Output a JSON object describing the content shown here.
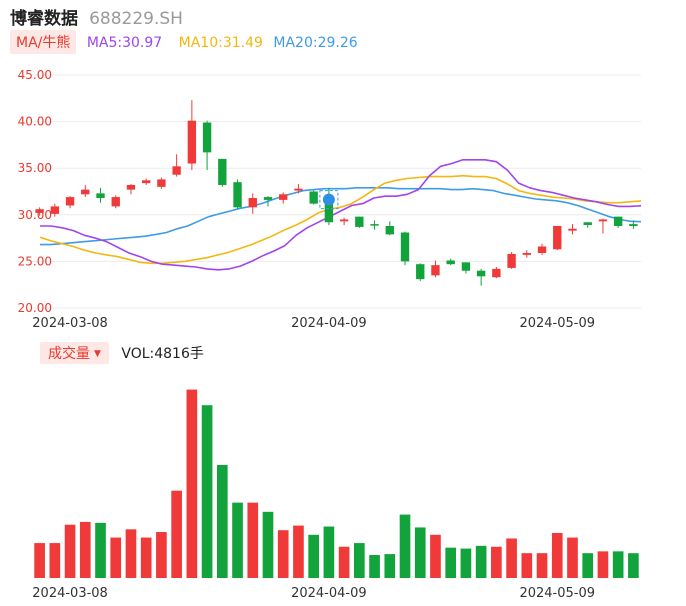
{
  "header": {
    "name": "博睿数据",
    "code": "688229.SH"
  },
  "ma_legend": {
    "tag": "MA/牛熊",
    "ma5": "MA5:30.97",
    "ma10": "MA10:31.49",
    "ma20": "MA20:29.26"
  },
  "volume_legend": {
    "tag": "成交量",
    "value": "VOL:4816手"
  },
  "colors": {
    "up": "#f03a3a",
    "down": "#12a33c",
    "ma5": "#a045ec",
    "ma10": "#f3b711",
    "ma20": "#3d9be9",
    "grid": "#ececec",
    "axis_label": "#e83a2e"
  },
  "chart_data": [
    {
      "type": "candlestick",
      "title": "",
      "ylim": [
        20,
        45
      ],
      "yticks": [
        "45.00",
        "40.00",
        "35.00",
        "30.00",
        "25.00",
        "20.00"
      ],
      "xticks": [
        {
          "index": 2,
          "label": "2024-03-08"
        },
        {
          "index": 19,
          "label": "2024-04-09"
        },
        {
          "index": 34,
          "label": "2024-05-09"
        }
      ],
      "grid": true,
      "candles": [
        {
          "o": 30.2,
          "h": 30.8,
          "l": 29.9,
          "c": 30.6
        },
        {
          "o": 30.1,
          "h": 31.2,
          "l": 29.8,
          "c": 30.9
        },
        {
          "o": 31.0,
          "h": 32.0,
          "l": 30.7,
          "c": 31.9
        },
        {
          "o": 32.2,
          "h": 33.2,
          "l": 31.9,
          "c": 32.7
        },
        {
          "o": 32.3,
          "h": 32.9,
          "l": 31.3,
          "c": 31.8
        },
        {
          "o": 30.9,
          "h": 32.1,
          "l": 30.7,
          "c": 31.9
        },
        {
          "o": 32.7,
          "h": 33.3,
          "l": 32.2,
          "c": 33.2
        },
        {
          "o": 33.4,
          "h": 33.9,
          "l": 33.2,
          "c": 33.7
        },
        {
          "o": 33.0,
          "h": 34.0,
          "l": 32.8,
          "c": 33.8
        },
        {
          "o": 34.3,
          "h": 36.5,
          "l": 34.1,
          "c": 35.2
        },
        {
          "o": 35.5,
          "h": 42.3,
          "l": 34.8,
          "c": 40.1
        },
        {
          "o": 39.9,
          "h": 40.1,
          "l": 34.8,
          "c": 36.7
        },
        {
          "o": 36.0,
          "h": 36.0,
          "l": 33.0,
          "c": 33.2
        },
        {
          "o": 33.5,
          "h": 33.8,
          "l": 30.6,
          "c": 30.8
        },
        {
          "o": 30.8,
          "h": 32.3,
          "l": 30.1,
          "c": 31.8
        },
        {
          "o": 31.9,
          "h": 32.0,
          "l": 30.9,
          "c": 31.6
        },
        {
          "o": 31.6,
          "h": 32.4,
          "l": 31.2,
          "c": 32.2
        },
        {
          "o": 32.6,
          "h": 33.3,
          "l": 32.3,
          "c": 32.8
        },
        {
          "o": 32.5,
          "h": 32.6,
          "l": 31.1,
          "c": 31.2
        },
        {
          "o": 31.2,
          "h": 32.9,
          "l": 28.9,
          "c": 29.2
        },
        {
          "o": 29.3,
          "h": 29.7,
          "l": 28.9,
          "c": 29.5
        },
        {
          "o": 29.8,
          "h": 29.8,
          "l": 28.6,
          "c": 28.7
        },
        {
          "o": 29.0,
          "h": 29.4,
          "l": 28.4,
          "c": 28.9
        },
        {
          "o": 28.8,
          "h": 29.3,
          "l": 27.8,
          "c": 27.9
        },
        {
          "o": 28.1,
          "h": 28.2,
          "l": 24.6,
          "c": 25.0
        },
        {
          "o": 24.7,
          "h": 24.8,
          "l": 22.9,
          "c": 23.1
        },
        {
          "o": 23.5,
          "h": 25.1,
          "l": 23.3,
          "c": 24.6
        },
        {
          "o": 25.1,
          "h": 25.3,
          "l": 24.6,
          "c": 24.7
        },
        {
          "o": 24.9,
          "h": 24.9,
          "l": 23.7,
          "c": 24.0
        },
        {
          "o": 24.0,
          "h": 24.2,
          "l": 22.4,
          "c": 23.4
        },
        {
          "o": 23.3,
          "h": 24.4,
          "l": 23.2,
          "c": 24.2
        },
        {
          "o": 24.3,
          "h": 26.0,
          "l": 24.2,
          "c": 25.8
        },
        {
          "o": 25.7,
          "h": 26.2,
          "l": 25.4,
          "c": 25.9
        },
        {
          "o": 25.9,
          "h": 26.9,
          "l": 25.7,
          "c": 26.6
        },
        {
          "o": 26.3,
          "h": 28.8,
          "l": 26.2,
          "c": 28.8
        },
        {
          "o": 28.3,
          "h": 29.0,
          "l": 27.9,
          "c": 28.5
        },
        {
          "o": 29.2,
          "h": 29.2,
          "l": 28.6,
          "c": 28.9
        },
        {
          "o": 29.3,
          "h": 29.6,
          "l": 28.0,
          "c": 29.5
        },
        {
          "o": 29.8,
          "h": 29.8,
          "l": 28.6,
          "c": 28.8
        },
        {
          "o": 29.0,
          "h": 29.4,
          "l": 28.5,
          "c": 28.8
        }
      ],
      "ma5": [
        28.8,
        28.8,
        28.6,
        28.3,
        27.8,
        27.5,
        27.1,
        26.5,
        25.9,
        25.5,
        25.0,
        24.7,
        24.6,
        24.5,
        24.4,
        24.2,
        24.1,
        24.2,
        24.5,
        25.0,
        25.6,
        26.1,
        26.7,
        27.8,
        28.6,
        29.2,
        29.8,
        30.4,
        31.0,
        31.2,
        31.8,
        32.0,
        32.0,
        32.2,
        32.7,
        34.2,
        35.2,
        35.5,
        35.9,
        35.9,
        35.9,
        35.7,
        34.8,
        33.4,
        32.9,
        32.6,
        32.4,
        32.1,
        31.8,
        31.6,
        31.4,
        31.1,
        30.9,
        30.9,
        30.97
      ],
      "ma10": [
        27.6,
        27.2,
        26.9,
        26.6,
        26.2,
        25.9,
        25.7,
        25.5,
        25.2,
        24.9,
        24.8,
        24.8,
        24.9,
        25.0,
        25.2,
        25.4,
        25.7,
        26.0,
        26.4,
        26.8,
        27.3,
        27.8,
        28.4,
        28.9,
        29.5,
        30.2,
        30.6,
        30.8,
        31.2,
        31.9,
        32.7,
        33.4,
        33.7,
        33.9,
        34.0,
        34.1,
        34.1,
        34.1,
        34.2,
        34.1,
        34.1,
        33.9,
        33.3,
        32.6,
        32.3,
        32.1,
        31.9,
        31.8,
        31.7,
        31.5,
        31.4,
        31.3,
        31.3,
        31.4,
        31.49
      ],
      "ma20": [
        26.8,
        26.8,
        26.9,
        27.0,
        27.1,
        27.2,
        27.3,
        27.4,
        27.5,
        27.6,
        27.7,
        27.9,
        28.1,
        28.5,
        28.8,
        29.3,
        29.8,
        30.1,
        30.4,
        30.7,
        30.9,
        31.2,
        31.6,
        32.0,
        32.3,
        32.6,
        32.7,
        32.8,
        32.8,
        32.8,
        32.9,
        32.9,
        32.9,
        32.9,
        32.8,
        32.8,
        32.8,
        32.8,
        32.8,
        32.7,
        32.7,
        32.8,
        32.7,
        32.6,
        32.3,
        32.1,
        31.9,
        31.7,
        31.6,
        31.5,
        31.3,
        31.0,
        30.6,
        30.2,
        29.8,
        29.5,
        29.3,
        29.26
      ],
      "marker_index": 19
    },
    {
      "type": "bar",
      "title": "",
      "name": "成交量",
      "volumes": [
        38,
        38,
        58,
        61,
        60,
        44,
        53,
        44,
        50,
        95,
        205,
        188,
        123,
        82,
        82,
        72,
        52,
        57,
        47,
        56,
        34,
        38,
        25,
        26,
        69,
        55,
        47,
        33,
        32,
        35,
        34,
        43,
        27,
        27,
        49,
        44,
        27,
        29,
        29,
        27
      ]
    }
  ]
}
